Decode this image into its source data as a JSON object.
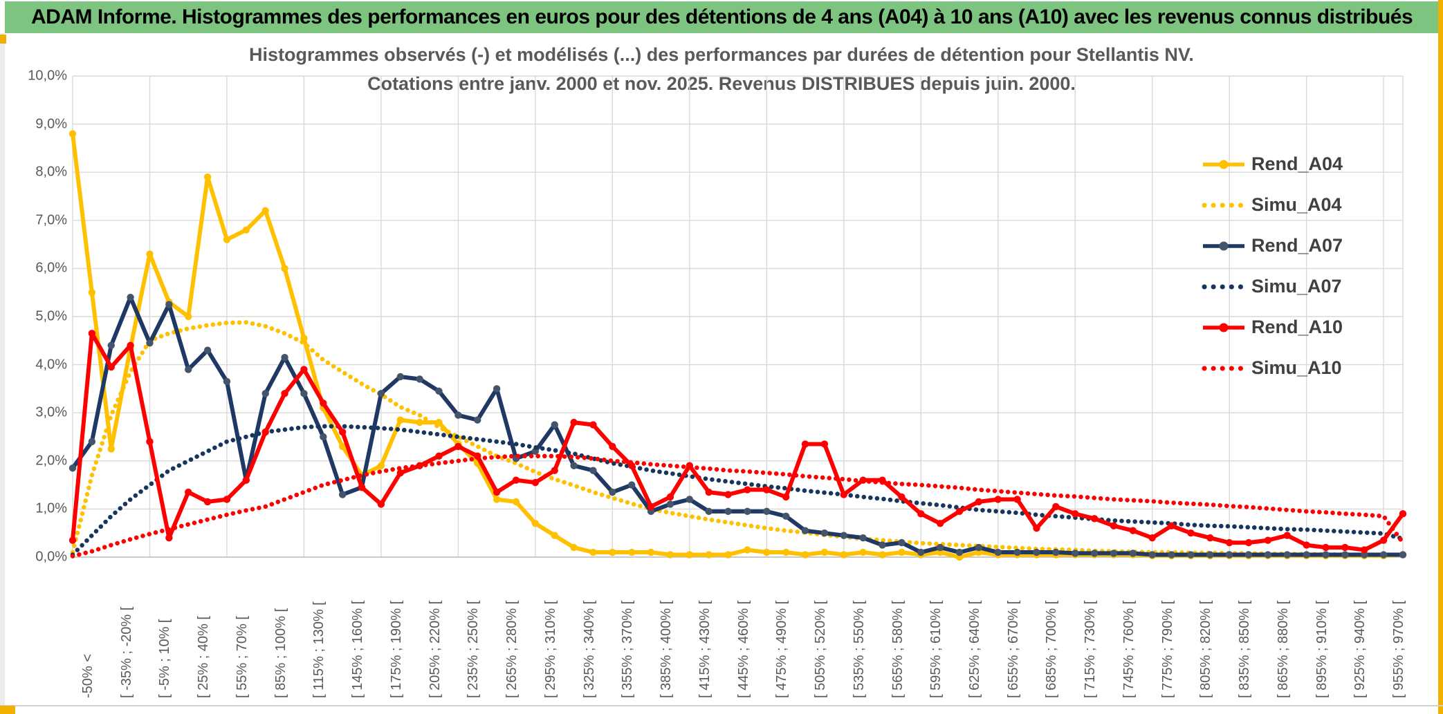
{
  "window": {
    "title": "ADAM Informe. Histogrammes des performances en euros pour des détentions de 4 ans (A04) à 10 ans (A10) avec les revenus connus distribués",
    "title_bar_color": "#7cc47f",
    "edge_color": "#efb000"
  },
  "chart_data": {
    "type": "line",
    "title": "Histogrammes observés (-) et modélisés (...) des performances par durées de détention pour Stellantis NV.",
    "subtitle": "Cotations entre janv. 2000 et nov. 2025. Revenus DISTRIBUES depuis juin. 2000.",
    "ylabel": "",
    "xlabel": "",
    "ylim": [
      0,
      10
    ],
    "grid": true,
    "legend_position": "right",
    "y_tick_labels": [
      "10,0%",
      "9,0%",
      "8,0%",
      "7,0%",
      "6,0%",
      "5,0%",
      "4,0%",
      "3,0%",
      "2,0%",
      "1,0%",
      "0,0%"
    ],
    "x_label_every": 2,
    "x_gridline_every": 4,
    "x_bin_labels": [
      "-50% <",
      "[ -35% ; -20% [",
      "[ -5% ; 10% [",
      "[ 25% ; 40% [",
      "[ 55% ; 70% [",
      "[ 85% ; 100% [",
      "[ 115% ; 130% [",
      "[ 145% ; 160% [",
      "[ 175% ; 190% [",
      "[ 205% ; 220% [",
      "[ 235% ; 250% [",
      "[ 265% ; 280% [",
      "[ 295% ; 310% [",
      "[ 325% ; 340% [",
      "[ 355% ; 370% [",
      "[ 385% ; 400% [",
      "[ 415% ; 430% [",
      "[ 445% ; 460% [",
      "[ 475% ; 490% [",
      "[ 505% ; 520% [",
      "[ 535% ; 550% [",
      "[ 565% ; 580% [",
      "[ 595% ; 610% [",
      "[ 625% ; 640% [",
      "[ 655% ; 670% [",
      "[ 685% ; 700% [",
      "[ 715% ; 730% [",
      "[ 745% ; 760% [",
      "[ 775% ; 790% [",
      "[ 805% ; 820% [",
      "[ 835% ; 850% [",
      "[ 865% ; 880% [",
      "[ 895% ; 910% [",
      "[ 925% ; 940% [",
      "[ 955% ; 970% ["
    ],
    "series": [
      {
        "name": "Rend_A04",
        "color": "#FFC000",
        "marker_color": "#FFC000",
        "dotted": false,
        "values": [
          8.8,
          5.5,
          2.25,
          4.35,
          6.3,
          5.3,
          5.0,
          7.9,
          6.6,
          6.8,
          7.2,
          6.0,
          4.55,
          3.1,
          2.3,
          1.7,
          1.9,
          2.85,
          2.8,
          2.8,
          2.35,
          1.95,
          1.2,
          1.15,
          0.7,
          0.45,
          0.2,
          0.1,
          0.1,
          0.1,
          0.1,
          0.05,
          0.05,
          0.05,
          0.05,
          0.15,
          0.1,
          0.1,
          0.05,
          0.1,
          0.05,
          0.1,
          0.05,
          0.1,
          0.05,
          0.1,
          0.0,
          0.1,
          0.05,
          0.05,
          0.05,
          0.05,
          0.05,
          0.05,
          0.05,
          0.05,
          0.03,
          0.03,
          0.03,
          0.03,
          0.03,
          0.03,
          0.03,
          0.03,
          0.03,
          0.03,
          0.03,
          0.03,
          0.03,
          0.05
        ]
      },
      {
        "name": "Simu_A04",
        "color": "#FFC000",
        "marker_color": "#FFC000",
        "dotted": true,
        "values": [
          0.1,
          1.7,
          2.95,
          3.85,
          4.5,
          4.65,
          4.75,
          4.82,
          4.87,
          4.88,
          4.8,
          4.65,
          4.45,
          4.1,
          3.85,
          3.6,
          3.38,
          3.12,
          2.95,
          2.7,
          2.5,
          2.3,
          2.1,
          1.95,
          1.77,
          1.62,
          1.49,
          1.35,
          1.23,
          1.11,
          1.0,
          0.92,
          0.85,
          0.78,
          0.72,
          0.66,
          0.6,
          0.55,
          0.51,
          0.46,
          0.42,
          0.38,
          0.35,
          0.32,
          0.29,
          0.27,
          0.25,
          0.23,
          0.21,
          0.19,
          0.17,
          0.16,
          0.15,
          0.13,
          0.12,
          0.11,
          0.1,
          0.1,
          0.09,
          0.09,
          0.08,
          0.08,
          0.07,
          0.07,
          0.06,
          0.06,
          0.05,
          0.05,
          0.04,
          0.04
        ]
      },
      {
        "name": "Rend_A07",
        "color": "#1F3864",
        "marker_color": "#44546A",
        "dotted": false,
        "values": [
          1.85,
          2.4,
          4.4,
          5.4,
          4.45,
          5.25,
          3.9,
          4.3,
          3.65,
          1.6,
          3.4,
          4.15,
          3.4,
          2.5,
          1.3,
          1.45,
          3.4,
          3.75,
          3.7,
          3.45,
          2.95,
          2.85,
          3.5,
          2.05,
          2.2,
          2.75,
          1.9,
          1.8,
          1.35,
          1.5,
          0.95,
          1.1,
          1.2,
          0.95,
          0.95,
          0.95,
          0.95,
          0.85,
          0.55,
          0.5,
          0.45,
          0.4,
          0.25,
          0.3,
          0.1,
          0.2,
          0.1,
          0.2,
          0.1,
          0.1,
          0.1,
          0.1,
          0.08,
          0.08,
          0.08,
          0.08,
          0.05,
          0.05,
          0.05,
          0.05,
          0.05,
          0.05,
          0.05,
          0.05,
          0.05,
          0.05,
          0.05,
          0.05,
          0.05,
          0.05
        ]
      },
      {
        "name": "Simu_A07",
        "color": "#17365D",
        "marker_color": "#17365D",
        "dotted": true,
        "values": [
          0.05,
          0.45,
          0.85,
          1.2,
          1.5,
          1.8,
          2.0,
          2.2,
          2.4,
          2.5,
          2.6,
          2.65,
          2.7,
          2.72,
          2.72,
          2.7,
          2.68,
          2.65,
          2.6,
          2.55,
          2.5,
          2.45,
          2.4,
          2.35,
          2.28,
          2.22,
          2.15,
          2.05,
          1.95,
          1.88,
          1.8,
          1.74,
          1.68,
          1.62,
          1.57,
          1.52,
          1.47,
          1.43,
          1.38,
          1.34,
          1.3,
          1.25,
          1.21,
          1.16,
          1.12,
          1.08,
          1.03,
          0.98,
          0.95,
          0.92,
          0.88,
          0.85,
          0.82,
          0.79,
          0.76,
          0.74,
          0.72,
          0.7,
          0.67,
          0.65,
          0.64,
          0.62,
          0.6,
          0.58,
          0.57,
          0.55,
          0.53,
          0.51,
          0.49,
          0.38
        ]
      },
      {
        "name": "Rend_A10",
        "color": "#FF0000",
        "marker_color": "#FF0000",
        "dotted": false,
        "values": [
          0.35,
          4.65,
          3.95,
          4.4,
          2.4,
          0.4,
          1.35,
          1.15,
          1.2,
          1.6,
          2.6,
          3.4,
          3.9,
          3.2,
          2.6,
          1.45,
          1.1,
          1.75,
          1.9,
          2.1,
          2.3,
          2.1,
          1.35,
          1.6,
          1.55,
          1.8,
          2.8,
          2.75,
          2.3,
          1.9,
          1.05,
          1.25,
          1.9,
          1.35,
          1.3,
          1.4,
          1.4,
          1.25,
          2.35,
          2.35,
          1.3,
          1.6,
          1.6,
          1.25,
          0.9,
          0.7,
          0.95,
          1.15,
          1.2,
          1.2,
          0.6,
          1.05,
          0.9,
          0.8,
          0.65,
          0.55,
          0.4,
          0.65,
          0.5,
          0.4,
          0.3,
          0.3,
          0.35,
          0.45,
          0.25,
          0.2,
          0.2,
          0.15,
          0.35,
          0.9
        ]
      },
      {
        "name": "Simu_A10",
        "color": "#FF0000",
        "marker_color": "#FF0000",
        "dotted": true,
        "values": [
          0.02,
          0.12,
          0.25,
          0.37,
          0.48,
          0.58,
          0.68,
          0.78,
          0.88,
          0.97,
          1.05,
          1.2,
          1.35,
          1.5,
          1.6,
          1.7,
          1.78,
          1.85,
          1.9,
          1.95,
          2.0,
          2.05,
          2.08,
          2.1,
          2.1,
          2.1,
          2.08,
          2.05,
          2.0,
          1.97,
          1.93,
          1.9,
          1.87,
          1.84,
          1.8,
          1.78,
          1.75,
          1.72,
          1.68,
          1.65,
          1.62,
          1.58,
          1.55,
          1.52,
          1.5,
          1.47,
          1.44,
          1.4,
          1.37,
          1.34,
          1.31,
          1.28,
          1.26,
          1.23,
          1.2,
          1.18,
          1.16,
          1.13,
          1.11,
          1.09,
          1.06,
          1.04,
          1.01,
          0.98,
          0.95,
          0.93,
          0.9,
          0.88,
          0.85,
          0.3
        ]
      }
    ]
  }
}
